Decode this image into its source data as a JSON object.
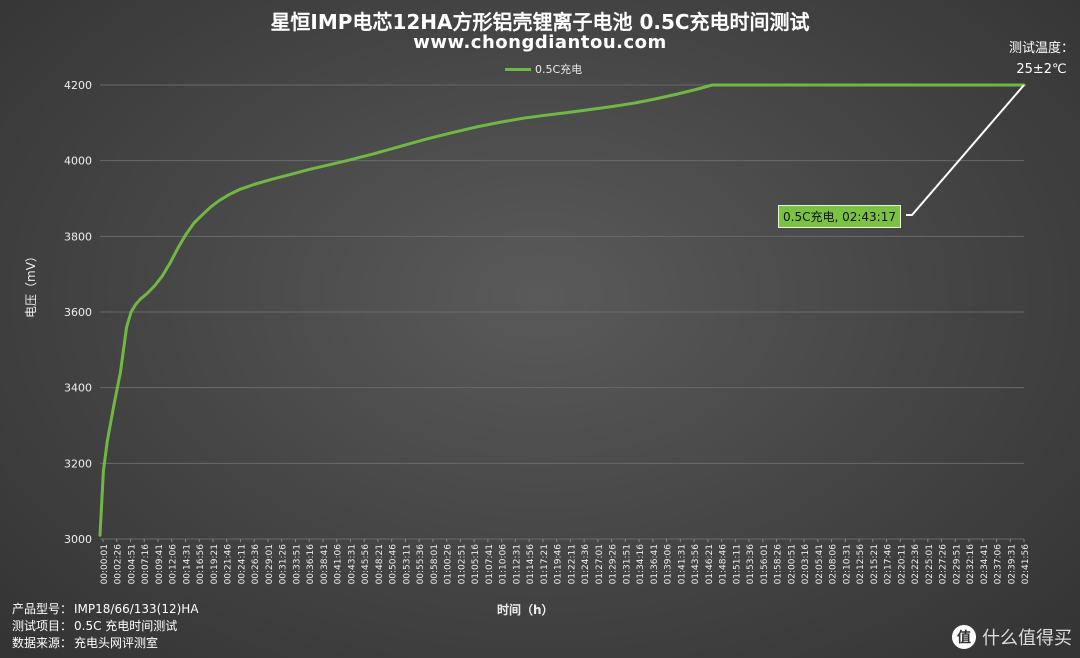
{
  "header": {
    "title": "星恒IMP电芯12HA方形铝壳锂离子电池 0.5C充电时间测试",
    "website": "www.chongdiantou.com",
    "temp_label": "测试温度：",
    "temp_value": "25±2℃"
  },
  "footer": {
    "model_label": "产品型号：",
    "model_value": "IMP18/66/133(12)HA",
    "item_label": "测试项目：",
    "item_value": "0.5C 充电时间测试",
    "source_label": "数据来源：",
    "source_value": "充电头网评测室"
  },
  "watermark": {
    "text": "什么值得买",
    "icon": "zhi-badge-icon"
  },
  "chart_data": {
    "type": "line",
    "title": "星恒IMP电芯12HA方形铝壳锂离子电池 0.5C充电时间测试",
    "xlabel": "时间（h）",
    "ylabel": "电压（mV）",
    "ylim": [
      3000,
      4200
    ],
    "yticks": [
      3000,
      3200,
      3400,
      3600,
      3800,
      4000,
      4200
    ],
    "grid": true,
    "legend": "top-center",
    "xticks": [
      "00:00:01",
      "00:02:26",
      "00:04:51",
      "00:07:16",
      "00:09:41",
      "00:12:06",
      "00:14:31",
      "00:16:56",
      "00:19:21",
      "00:21:46",
      "00:24:11",
      "00:26:36",
      "00:29:01",
      "00:31:26",
      "00:33:51",
      "00:36:16",
      "00:38:41",
      "00:41:06",
      "00:43:31",
      "00:45:56",
      "00:48:21",
      "00:50:46",
      "00:53:11",
      "00:55:36",
      "00:58:01",
      "01:00:26",
      "01:02:51",
      "01:05:16",
      "01:07:41",
      "01:10:06",
      "01:12:31",
      "01:14:56",
      "01:17:21",
      "01:19:46",
      "01:22:11",
      "01:24:36",
      "01:27:01",
      "01:29:26",
      "01:31:51",
      "01:34:16",
      "01:36:41",
      "01:39:06",
      "01:41:31",
      "01:43:56",
      "01:46:21",
      "01:48:46",
      "01:51:11",
      "01:53:36",
      "01:56:01",
      "01:58:26",
      "02:00:51",
      "02:03:16",
      "02:05:41",
      "02:08:06",
      "02:10:31",
      "02:12:56",
      "02:15:21",
      "02:17:46",
      "02:20:11",
      "02:22:36",
      "02:25:01",
      "02:27:26",
      "02:29:51",
      "02:32:16",
      "02:34:41",
      "02:37:06",
      "02:39:31",
      "02:41:56"
    ],
    "series": [
      {
        "name": "0.5C充电",
        "color": "#70b843",
        "x_minutes": [
          0,
          0.6,
          1.3,
          2.4,
          3.6,
          4.7,
          5.5,
          6.3,
          7.2,
          8.4,
          9.7,
          11,
          12.4,
          13.8,
          15.2,
          16.6,
          18.1,
          19.6,
          21.1,
          22.8,
          24.7,
          27.2,
          30.2,
          33.5,
          36.8,
          40.2,
          43.6,
          48.3,
          53.1,
          57.7,
          62.2,
          66.5,
          70.8,
          74.7,
          78.6,
          82.5,
          86.5,
          90.4,
          94.3,
          98.1,
          102,
          105.3,
          108.2,
          111.2,
          114.2,
          117,
          119.5,
          162.0,
          163.28
        ],
        "y_mv": [
          3010,
          3180,
          3260,
          3350,
          3440,
          3560,
          3600,
          3620,
          3635,
          3650,
          3670,
          3695,
          3730,
          3770,
          3805,
          3835,
          3857,
          3878,
          3895,
          3910,
          3924,
          3937,
          3950,
          3963,
          3976,
          3988,
          4000,
          4018,
          4038,
          4057,
          4074,
          4089,
          4102,
          4112,
          4120,
          4127,
          4135,
          4143,
          4152,
          4163,
          4176,
          4188,
          4200,
          4200,
          4200,
          4200,
          4200,
          4200,
          4200
        ]
      }
    ],
    "annotation": {
      "text": "0.5C充电, 02:43:17",
      "x_minutes": 163.28,
      "y_mv": 4200
    }
  }
}
